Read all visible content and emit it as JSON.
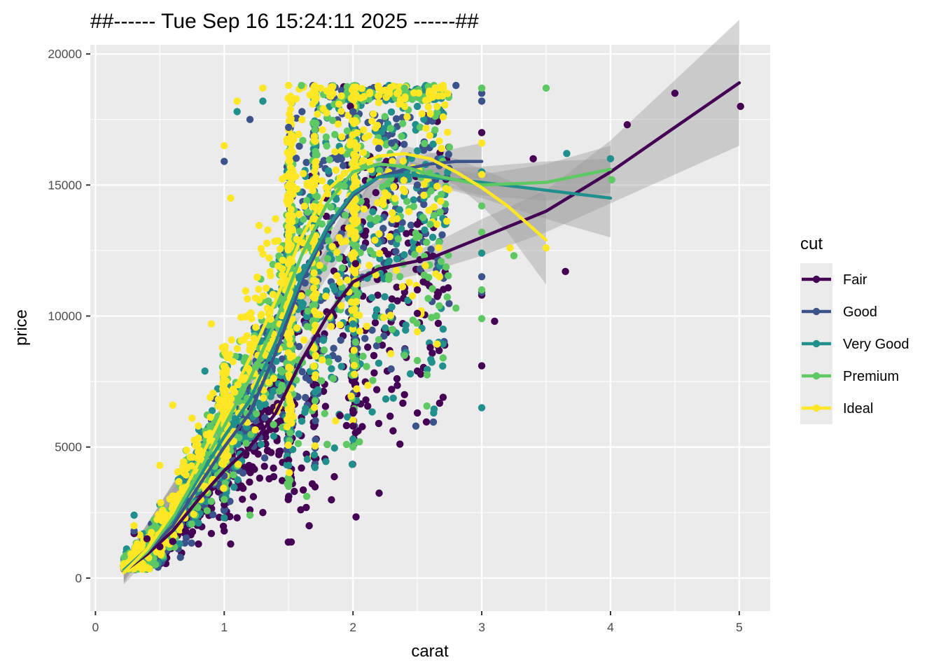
{
  "chart_data": {
    "type": "scatter",
    "title": "##------ Tue Sep 16 15:24:11 2025 ------##",
    "xlabel": "carat",
    "ylabel": "price",
    "xlim": [
      -0.04,
      5.24
    ],
    "ylim": [
      -1260,
      20350
    ],
    "x_ticks": [
      0,
      1,
      2,
      3,
      4,
      5
    ],
    "y_ticks": [
      0,
      5000,
      10000,
      15000,
      20000
    ],
    "x_tick_labels": [
      "0",
      "1",
      "2",
      "3",
      "4",
      "5"
    ],
    "y_tick_labels": [
      "0",
      "5000",
      "10000",
      "15000",
      "20000"
    ],
    "grid": true,
    "panel_background": "#ebebeb",
    "legend": {
      "title": "cut",
      "position": "right",
      "labels": [
        "Fair",
        "Good",
        "Very Good",
        "Premium",
        "Ideal"
      ]
    },
    "series": [
      {
        "name": "Fair",
        "color": "#440154",
        "smooth": [
          [
            0.22,
            250
          ],
          [
            0.4,
            900
          ],
          [
            0.6,
            1800
          ],
          [
            0.8,
            3000
          ],
          [
            1.0,
            4100
          ],
          [
            1.2,
            5000
          ],
          [
            1.4,
            6300
          ],
          [
            1.6,
            8300
          ],
          [
            1.8,
            10000
          ],
          [
            2.0,
            11300
          ],
          [
            2.2,
            11800
          ],
          [
            2.4,
            12000
          ],
          [
            2.6,
            12200
          ],
          [
            2.8,
            12600
          ],
          [
            3.0,
            13000
          ],
          [
            3.5,
            14000
          ],
          [
            4.0,
            15500
          ],
          [
            4.5,
            17200
          ],
          [
            5.0,
            18900
          ]
        ],
        "ribbon": [
          [
            0.22,
            -250,
            750
          ],
          [
            1.0,
            3900,
            4300
          ],
          [
            2.0,
            11000,
            11600
          ],
          [
            2.6,
            11700,
            12700
          ],
          [
            3.0,
            12300,
            13700
          ],
          [
            3.5,
            13200,
            14800
          ],
          [
            4.0,
            14300,
            16700
          ],
          [
            4.5,
            15400,
            19000
          ],
          [
            5.0,
            16500,
            21300
          ]
        ],
        "points": [
          [
            0.3,
            1700
          ],
          [
            0.4,
            1500
          ],
          [
            0.5,
            1200
          ],
          [
            0.6,
            1400
          ],
          [
            0.7,
            1800
          ],
          [
            0.8,
            1300
          ],
          [
            0.9,
            1700
          ],
          [
            1.0,
            1800
          ],
          [
            1.0,
            2800
          ],
          [
            1.05,
            1300
          ],
          [
            1.1,
            2300
          ],
          [
            1.2,
            2600
          ],
          [
            1.3,
            2500
          ],
          [
            1.5,
            3100
          ],
          [
            1.5,
            4500
          ],
          [
            1.6,
            4200
          ],
          [
            1.7,
            4600
          ],
          [
            1.8,
            5100
          ],
          [
            1.9,
            6200
          ],
          [
            2.0,
            6400
          ],
          [
            2.0,
            5800
          ],
          [
            2.1,
            6800
          ],
          [
            2.2,
            5900
          ],
          [
            2.3,
            7200
          ],
          [
            2.4,
            7000
          ],
          [
            2.5,
            6300
          ],
          [
            2.5,
            7900
          ],
          [
            2.6,
            8800
          ],
          [
            2.7,
            6900
          ],
          [
            2.5,
            10100
          ],
          [
            3.0,
            8100
          ],
          [
            3.0,
            10800
          ],
          [
            3.0,
            17000
          ],
          [
            3.1,
            9800
          ],
          [
            3.4,
            16000
          ],
          [
            3.65,
            11700
          ],
          [
            4.13,
            17300
          ],
          [
            4.5,
            18500
          ],
          [
            5.01,
            18000
          ],
          [
            1.98,
            18000
          ],
          [
            2.02,
            12000
          ],
          [
            2.5,
            11000
          ],
          [
            2.5,
            13500
          ]
        ]
      },
      {
        "name": "Good",
        "color": "#3b528b",
        "smooth": [
          [
            0.22,
            300
          ],
          [
            0.4,
            1000
          ],
          [
            0.6,
            2000
          ],
          [
            0.8,
            3500
          ],
          [
            1.0,
            5000
          ],
          [
            1.2,
            6300
          ],
          [
            1.4,
            8600
          ],
          [
            1.6,
            11300
          ],
          [
            1.8,
            13300
          ],
          [
            2.0,
            14600
          ],
          [
            2.2,
            15300
          ],
          [
            2.4,
            15600
          ],
          [
            2.6,
            15800
          ],
          [
            2.8,
            15900
          ],
          [
            3.0,
            15900
          ]
        ],
        "ribbon": [
          [
            0.22,
            -100,
            700
          ],
          [
            2.2,
            15000,
            15600
          ],
          [
            2.6,
            15400,
            16200
          ],
          [
            3.0,
            15200,
            16600
          ]
        ],
        "points": [
          [
            0.3,
            1800
          ],
          [
            0.7,
            3000
          ],
          [
            1.0,
            3900
          ],
          [
            1.2,
            17500
          ],
          [
            1.5,
            17200
          ],
          [
            2.0,
            17800
          ],
          [
            2.2,
            16400
          ],
          [
            2.5,
            15000
          ],
          [
            2.8,
            18800
          ],
          [
            3.0,
            18200
          ],
          [
            3.0,
            10900
          ],
          [
            3.0,
            11500
          ],
          [
            3.0,
            18500
          ],
          [
            2.3,
            16600
          ],
          [
            1.0,
            15900
          ]
        ]
      },
      {
        "name": "Very Good",
        "color": "#21908c",
        "smooth": [
          [
            0.22,
            300
          ],
          [
            0.4,
            1100
          ],
          [
            0.6,
            2200
          ],
          [
            0.8,
            3800
          ],
          [
            1.0,
            5400
          ],
          [
            1.2,
            6800
          ],
          [
            1.4,
            9000
          ],
          [
            1.6,
            11500
          ],
          [
            1.8,
            13400
          ],
          [
            2.0,
            14700
          ],
          [
            2.2,
            15300
          ],
          [
            2.4,
            15400
          ],
          [
            2.6,
            15300
          ],
          [
            2.8,
            15200
          ],
          [
            3.0,
            15100
          ],
          [
            3.5,
            14800
          ],
          [
            4.0,
            14500
          ]
        ],
        "ribbon": [
          [
            0.22,
            -100,
            700
          ],
          [
            2.2,
            15000,
            15600
          ],
          [
            2.6,
            15000,
            15600
          ],
          [
            3.0,
            14500,
            15700
          ],
          [
            3.5,
            13700,
            15900
          ],
          [
            4.0,
            13000,
            16000
          ]
        ],
        "points": [
          [
            0.3,
            2400
          ],
          [
            0.5,
            1500
          ],
          [
            0.8,
            2100
          ],
          [
            0.85,
            7900
          ],
          [
            1.0,
            2300
          ],
          [
            1.5,
            4300
          ],
          [
            1.7,
            4700
          ],
          [
            2.0,
            5300
          ],
          [
            2.0,
            9700
          ],
          [
            2.2,
            8200
          ],
          [
            2.7,
            9500
          ],
          [
            3.0,
            6500
          ],
          [
            3.0,
            12400
          ],
          [
            3.66,
            16200
          ],
          [
            4.0,
            16000
          ],
          [
            1.1,
            17800
          ],
          [
            2.5,
            18000
          ],
          [
            3.0,
            15500
          ],
          [
            1.3,
            18200
          ]
        ]
      },
      {
        "name": "Premium",
        "color": "#5ec962",
        "smooth": [
          [
            0.22,
            250
          ],
          [
            0.4,
            1000
          ],
          [
            0.6,
            2300
          ],
          [
            0.8,
            4000
          ],
          [
            1.0,
            5800
          ],
          [
            1.2,
            7600
          ],
          [
            1.4,
            9800
          ],
          [
            1.6,
            12300
          ],
          [
            1.8,
            14300
          ],
          [
            2.0,
            15500
          ],
          [
            2.2,
            15800
          ],
          [
            2.4,
            15700
          ],
          [
            2.6,
            15400
          ],
          [
            2.8,
            15200
          ],
          [
            3.0,
            15000
          ],
          [
            3.5,
            15100
          ],
          [
            4.0,
            15600
          ]
        ],
        "ribbon": [
          [
            0.22,
            -150,
            650
          ],
          [
            2.2,
            15500,
            16100
          ],
          [
            3.0,
            14600,
            15400
          ],
          [
            3.5,
            14400,
            15800
          ],
          [
            4.0,
            14700,
            16500
          ]
        ],
        "points": [
          [
            0.8,
            4300
          ],
          [
            1.0,
            3000
          ],
          [
            1.2,
            2400
          ],
          [
            1.5,
            3500
          ],
          [
            1.8,
            5100
          ],
          [
            1.95,
            5100
          ],
          [
            2.0,
            5000
          ],
          [
            2.05,
            5200
          ],
          [
            2.2,
            9100
          ],
          [
            2.4,
            8500
          ],
          [
            2.5,
            8300
          ],
          [
            2.65,
            10000
          ],
          [
            2.7,
            8400
          ],
          [
            2.8,
            10300
          ],
          [
            3.0,
            9900
          ],
          [
            3.0,
            11000
          ],
          [
            3.0,
            18700
          ],
          [
            3.5,
            18700
          ],
          [
            3.25,
            12300
          ],
          [
            4.01,
            15200
          ],
          [
            2.6,
            13500
          ],
          [
            1.6,
            18800
          ],
          [
            2.4,
            18700
          ],
          [
            3.0,
            14200
          ],
          [
            3.0,
            13200
          ]
        ]
      },
      {
        "name": "Ideal",
        "color": "#fde725",
        "smooth": [
          [
            0.22,
            200
          ],
          [
            0.4,
            1100
          ],
          [
            0.6,
            2500
          ],
          [
            0.8,
            4400
          ],
          [
            1.0,
            6400
          ],
          [
            1.2,
            8400
          ],
          [
            1.4,
            10600
          ],
          [
            1.6,
            13000
          ],
          [
            1.8,
            14800
          ],
          [
            2.0,
            15700
          ],
          [
            2.2,
            16100
          ],
          [
            2.4,
            16200
          ],
          [
            2.6,
            16000
          ],
          [
            2.8,
            15500
          ],
          [
            3.0,
            14900
          ],
          [
            3.2,
            14200
          ],
          [
            3.5,
            12900
          ]
        ],
        "ribbon": [
          [
            0.22,
            -200,
            600
          ],
          [
            2.4,
            15900,
            16500
          ],
          [
            2.8,
            15000,
            16000
          ],
          [
            3.0,
            14200,
            15600
          ],
          [
            3.2,
            13200,
            15200
          ],
          [
            3.5,
            11200,
            14600
          ]
        ],
        "points": [
          [
            0.3,
            2000
          ],
          [
            0.5,
            4300
          ],
          [
            0.6,
            6600
          ],
          [
            0.9,
            9700
          ],
          [
            1.0,
            16500
          ],
          [
            1.1,
            18200
          ],
          [
            1.3,
            18700
          ],
          [
            1.5,
            18800
          ],
          [
            1.75,
            18700
          ],
          [
            2.2,
            18700
          ],
          [
            2.7,
            18800
          ],
          [
            3.0,
            15400
          ],
          [
            3.0,
            16600
          ],
          [
            3.22,
            12600
          ],
          [
            3.5,
            12600
          ],
          [
            2.5,
            9400
          ],
          [
            0.75,
            6100
          ],
          [
            1.05,
            14500
          ]
        ]
      }
    ]
  }
}
